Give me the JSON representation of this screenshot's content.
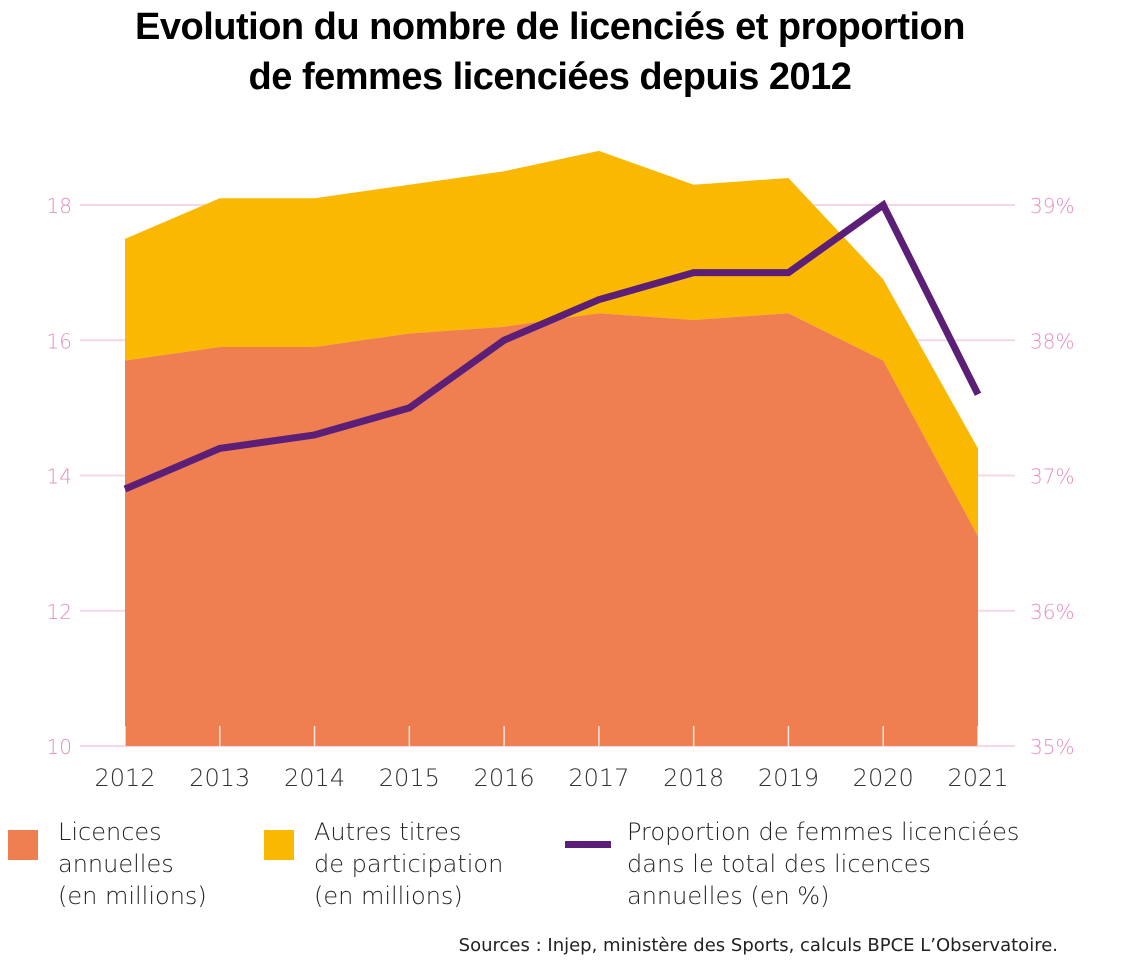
{
  "title": "Evolution du nombre de licenciés et proportion de femmes licenciées depuis 2012",
  "title_lines": [
    "Evolution du nombre de licenciés et proportion",
    "de femmes licenciées depuis 2012"
  ],
  "colors": {
    "licences": "#EF7F51",
    "autres": "#FAB800",
    "proportion": "#5C1F78",
    "axis_labels": "#E68CC0",
    "gridline": "#F6D7EA",
    "year_labels": "#333333"
  },
  "legend": {
    "licences": "Licences\nannuelles\n(en millions)",
    "autres": "Autres titres\nde participation\n(en millions)",
    "proportion": "Proportion de femmes licenciées\ndans le total des licences\nannuelles (en %)"
  },
  "sources": "Sources : Injep, ministère des Sports, calculs BPCE L’Observatoire.",
  "chart_data": {
    "type": "area",
    "title": "Evolution du nombre de licenciés et proportion de femmes licenciées depuis 2012",
    "categories": [
      "2012",
      "2013",
      "2014",
      "2015",
      "2016",
      "2017",
      "2018",
      "2019",
      "2020",
      "2021"
    ],
    "series": [
      {
        "name": "Licences annuelles (en millions)",
        "type": "stacked-area",
        "axis": "left",
        "values": [
          15.7,
          15.9,
          15.9,
          16.1,
          16.2,
          16.4,
          16.3,
          16.4,
          15.7,
          13.1
        ]
      },
      {
        "name": "Autres titres de participation (en millions)",
        "type": "stacked-area",
        "axis": "left",
        "values": [
          1.8,
          2.2,
          2.2,
          2.2,
          2.3,
          2.4,
          2.0,
          2.0,
          1.2,
          1.3
        ]
      },
      {
        "name": "Proportion de femmes licenciées dans le total des licences annuelles (en %)",
        "type": "line",
        "axis": "right",
        "values": [
          36.9,
          37.2,
          37.3,
          37.5,
          38.0,
          38.3,
          38.5,
          38.5,
          39.0,
          37.6
        ]
      }
    ],
    "left_axis": {
      "range": [
        10,
        18
      ],
      "ticks": [
        "10",
        "12",
        "14",
        "16",
        "18"
      ]
    },
    "right_axis": {
      "range": [
        35,
        39
      ],
      "ticks": [
        "35%",
        "36%",
        "37%",
        "38%",
        "39%"
      ]
    },
    "xlabel": "",
    "ylabel": "",
    "grid": true,
    "legend_position": "bottom"
  }
}
